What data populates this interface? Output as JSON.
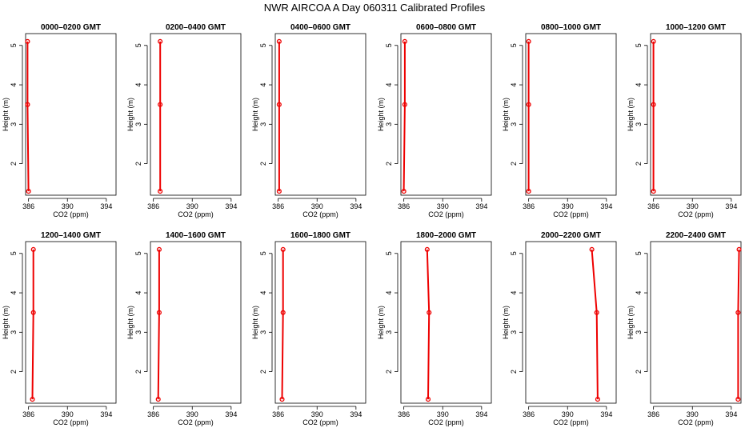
{
  "figure_title": "NWR AIRCOA A  Day 060311  Calibrated Profiles",
  "colors": {
    "line": "#ee0000",
    "axis": "#000000",
    "background": "#ffffff"
  },
  "chart_data": [
    {
      "type": "line",
      "title": "0000–0200 GMT",
      "xlabel": "CO2 (ppm)",
      "ylabel": "Height (m)",
      "xlim": [
        385.7,
        395
      ],
      "ylim": [
        1.2,
        5.3
      ],
      "xticks": [
        386,
        390,
        394
      ],
      "yticks": [
        2,
        3,
        4,
        5
      ],
      "series": [
        {
          "name": "profile",
          "points": [
            {
              "x": 385.9,
              "y": 5.1
            },
            {
              "x": 385.9,
              "y": 3.5
            },
            {
              "x": 386.0,
              "y": 1.3
            }
          ]
        }
      ]
    },
    {
      "type": "line",
      "title": "0200–0400 GMT",
      "xlabel": "CO2 (ppm)",
      "ylabel": "Height (m)",
      "xlim": [
        385.7,
        395
      ],
      "ylim": [
        1.2,
        5.3
      ],
      "xticks": [
        386,
        390,
        394
      ],
      "yticks": [
        2,
        3,
        4,
        5
      ],
      "series": [
        {
          "name": "profile",
          "points": [
            {
              "x": 386.7,
              "y": 5.1
            },
            {
              "x": 386.7,
              "y": 3.5
            },
            {
              "x": 386.7,
              "y": 1.3
            }
          ]
        }
      ]
    },
    {
      "type": "line",
      "title": "0400–0600 GMT",
      "xlabel": "CO2 (ppm)",
      "ylabel": "Height (m)",
      "xlim": [
        385.7,
        395
      ],
      "ylim": [
        1.2,
        5.3
      ],
      "xticks": [
        386,
        390,
        394
      ],
      "yticks": [
        2,
        3,
        4,
        5
      ],
      "series": [
        {
          "name": "profile",
          "points": [
            {
              "x": 386.1,
              "y": 5.1
            },
            {
              "x": 386.1,
              "y": 3.5
            },
            {
              "x": 386.1,
              "y": 1.3
            }
          ]
        }
      ]
    },
    {
      "type": "line",
      "title": "0600–0800 GMT",
      "xlabel": "CO2 (ppm)",
      "ylabel": "Height (m)",
      "xlim": [
        385.7,
        395
      ],
      "ylim": [
        1.2,
        5.3
      ],
      "xticks": [
        386,
        390,
        394
      ],
      "yticks": [
        2,
        3,
        4,
        5
      ],
      "series": [
        {
          "name": "profile",
          "points": [
            {
              "x": 386.1,
              "y": 5.1
            },
            {
              "x": 386.1,
              "y": 3.5
            },
            {
              "x": 386.0,
              "y": 1.3
            }
          ]
        }
      ]
    },
    {
      "type": "line",
      "title": "0800–1000 GMT",
      "xlabel": "CO2 (ppm)",
      "ylabel": "Height (m)",
      "xlim": [
        385.7,
        395
      ],
      "ylim": [
        1.2,
        5.3
      ],
      "xticks": [
        386,
        390,
        394
      ],
      "yticks": [
        2,
        3,
        4,
        5
      ],
      "series": [
        {
          "name": "profile",
          "points": [
            {
              "x": 386.0,
              "y": 5.1
            },
            {
              "x": 386.0,
              "y": 3.5
            },
            {
              "x": 386.0,
              "y": 1.3
            }
          ]
        }
      ]
    },
    {
      "type": "line",
      "title": "1000–1200 GMT",
      "xlabel": "CO2 (ppm)",
      "ylabel": "Height (m)",
      "xlim": [
        385.7,
        395
      ],
      "ylim": [
        1.2,
        5.3
      ],
      "xticks": [
        386,
        390,
        394
      ],
      "yticks": [
        2,
        3,
        4,
        5
      ],
      "series": [
        {
          "name": "profile",
          "points": [
            {
              "x": 386.0,
              "y": 5.1
            },
            {
              "x": 386.0,
              "y": 3.5
            },
            {
              "x": 386.0,
              "y": 1.3
            }
          ]
        }
      ]
    },
    {
      "type": "line",
      "title": "1200–1400 GMT",
      "xlabel": "CO2 (ppm)",
      "ylabel": "Height (m)",
      "xlim": [
        385.7,
        395
      ],
      "ylim": [
        1.2,
        5.3
      ],
      "xticks": [
        386,
        390,
        394
      ],
      "yticks": [
        2,
        3,
        4,
        5
      ],
      "series": [
        {
          "name": "profile",
          "points": [
            {
              "x": 386.5,
              "y": 5.1
            },
            {
              "x": 386.5,
              "y": 3.5
            },
            {
              "x": 386.4,
              "y": 1.3
            }
          ]
        }
      ]
    },
    {
      "type": "line",
      "title": "1400–1600 GMT",
      "xlabel": "CO2 (ppm)",
      "ylabel": "Height (m)",
      "xlim": [
        385.7,
        395
      ],
      "ylim": [
        1.2,
        5.3
      ],
      "xticks": [
        386,
        390,
        394
      ],
      "yticks": [
        2,
        3,
        4,
        5
      ],
      "series": [
        {
          "name": "profile",
          "points": [
            {
              "x": 386.6,
              "y": 5.1
            },
            {
              "x": 386.6,
              "y": 3.5
            },
            {
              "x": 386.5,
              "y": 1.3
            }
          ]
        }
      ]
    },
    {
      "type": "line",
      "title": "1600–1800 GMT",
      "xlabel": "CO2 (ppm)",
      "ylabel": "Height (m)",
      "xlim": [
        385.7,
        395
      ],
      "ylim": [
        1.2,
        5.3
      ],
      "xticks": [
        386,
        390,
        394
      ],
      "yticks": [
        2,
        3,
        4,
        5
      ],
      "series": [
        {
          "name": "profile",
          "points": [
            {
              "x": 386.5,
              "y": 5.1
            },
            {
              "x": 386.5,
              "y": 3.5
            },
            {
              "x": 386.4,
              "y": 1.3
            }
          ]
        }
      ]
    },
    {
      "type": "line",
      "title": "1800–2000 GMT",
      "xlabel": "CO2 (ppm)",
      "ylabel": "Height (m)",
      "xlim": [
        385.7,
        395
      ],
      "ylim": [
        1.2,
        5.3
      ],
      "xticks": [
        386,
        390,
        394
      ],
      "yticks": [
        2,
        3,
        4,
        5
      ],
      "series": [
        {
          "name": "profile",
          "points": [
            {
              "x": 388.4,
              "y": 5.1
            },
            {
              "x": 388.6,
              "y": 3.5
            },
            {
              "x": 388.5,
              "y": 1.3
            }
          ]
        }
      ]
    },
    {
      "type": "line",
      "title": "2000–2200 GMT",
      "xlabel": "CO2 (ppm)",
      "ylabel": "Height (m)",
      "xlim": [
        385.7,
        395
      ],
      "ylim": [
        1.2,
        5.3
      ],
      "xticks": [
        386,
        390,
        394
      ],
      "yticks": [
        2,
        3,
        4,
        5
      ],
      "series": [
        {
          "name": "profile",
          "points": [
            {
              "x": 392.5,
              "y": 5.1
            },
            {
              "x": 393.0,
              "y": 3.5
            },
            {
              "x": 393.1,
              "y": 1.3
            }
          ]
        }
      ]
    },
    {
      "type": "line",
      "title": "2200–2400 GMT",
      "xlabel": "CO2 (ppm)",
      "ylabel": "Height (m)",
      "xlim": [
        385.7,
        395
      ],
      "ylim": [
        1.2,
        5.3
      ],
      "xticks": [
        386,
        390,
        394
      ],
      "yticks": [
        2,
        3,
        4,
        5
      ],
      "series": [
        {
          "name": "profile",
          "points": [
            {
              "x": 394.8,
              "y": 5.1
            },
            {
              "x": 394.7,
              "y": 3.5
            },
            {
              "x": 394.7,
              "y": 1.3
            }
          ]
        }
      ]
    }
  ]
}
